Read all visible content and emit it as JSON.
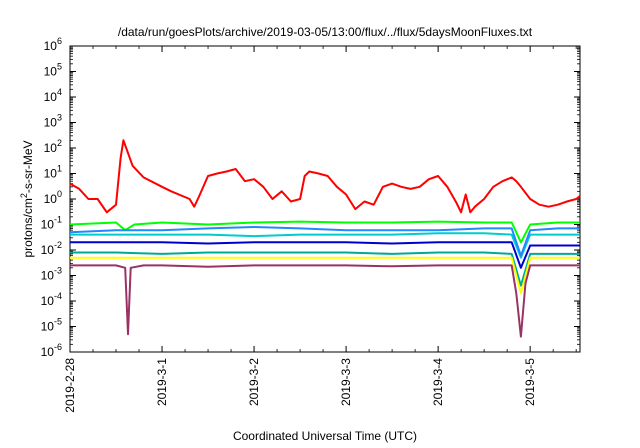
{
  "chart_data": {
    "type": "line",
    "title": "/data/run/goesPlots/archive/2019-03-05/13:00/flux/../flux/5daysMoonFluxes.txt",
    "xlabel": "Coordinated Universal Time (UTC)",
    "ylabel": {
      "base": "protons/cm",
      "sup": "2",
      "rest": "-s-sr-MeV"
    },
    "yscale": "log",
    "ylim": [
      1e-06,
      1000000.0
    ],
    "xlim": [
      "2019-02-28T00:00",
      "2019-03-05T13:00"
    ],
    "x_ticks": [
      "2019-2-28",
      "2019-3-1",
      "2019-3-2",
      "2019-3-3",
      "2019-3-4",
      "2019-3-5"
    ],
    "y_ticks": [
      {
        "base": "10",
        "exp": "6"
      },
      {
        "base": "10",
        "exp": "5"
      },
      {
        "base": "10",
        "exp": "4"
      },
      {
        "base": "10",
        "exp": "3"
      },
      {
        "base": "10",
        "exp": "2"
      },
      {
        "base": "10",
        "exp": "1"
      },
      {
        "base": "10",
        "exp": "0"
      },
      {
        "base": "10",
        "exp": "-1"
      },
      {
        "base": "10",
        "exp": "-2"
      },
      {
        "base": "10",
        "exp": "-3"
      },
      {
        "base": "10",
        "exp": "-4"
      },
      {
        "base": "10",
        "exp": "-5"
      },
      {
        "base": "10",
        "exp": "-6"
      }
    ],
    "grid": false,
    "legend": "none",
    "series": [
      {
        "color": "#ff0000",
        "points": [
          [
            0,
            4
          ],
          [
            0.1,
            2.5
          ],
          [
            0.2,
            1
          ],
          [
            0.3,
            1
          ],
          [
            0.4,
            0.3
          ],
          [
            0.5,
            0.6
          ],
          [
            0.55,
            40
          ],
          [
            0.58,
            200
          ],
          [
            0.62,
            80
          ],
          [
            0.68,
            20
          ],
          [
            0.8,
            7
          ],
          [
            1,
            3
          ],
          [
            1.1,
            2
          ],
          [
            1.3,
            1
          ],
          [
            1.35,
            0.5
          ],
          [
            1.4,
            1.2
          ],
          [
            1.5,
            8
          ],
          [
            1.6,
            10
          ],
          [
            1.7,
            12
          ],
          [
            1.8,
            15
          ],
          [
            1.9,
            5
          ],
          [
            2,
            6
          ],
          [
            2.1,
            3
          ],
          [
            2.2,
            1
          ],
          [
            2.3,
            2
          ],
          [
            2.4,
            0.8
          ],
          [
            2.5,
            1
          ],
          [
            2.55,
            8
          ],
          [
            2.6,
            12
          ],
          [
            2.7,
            10
          ],
          [
            2.8,
            8
          ],
          [
            2.9,
            3
          ],
          [
            3,
            1.5
          ],
          [
            3.1,
            0.4
          ],
          [
            3.2,
            0.8
          ],
          [
            3.3,
            0.6
          ],
          [
            3.4,
            3
          ],
          [
            3.5,
            4
          ],
          [
            3.6,
            3
          ],
          [
            3.7,
            2.5
          ],
          [
            3.8,
            3
          ],
          [
            3.9,
            6
          ],
          [
            4,
            8
          ],
          [
            4.1,
            3
          ],
          [
            4.2,
            0.7
          ],
          [
            4.25,
            0.3
          ],
          [
            4.3,
            1.5
          ],
          [
            4.35,
            0.3
          ],
          [
            4.4,
            0.5
          ],
          [
            4.5,
            1
          ],
          [
            4.6,
            3
          ],
          [
            4.7,
            5
          ],
          [
            4.8,
            7
          ],
          [
            4.85,
            5
          ],
          [
            4.9,
            3
          ],
          [
            5,
            1
          ],
          [
            5.1,
            0.6
          ],
          [
            5.2,
            0.5
          ],
          [
            5.3,
            0.6
          ],
          [
            5.4,
            0.8
          ],
          [
            5.5,
            1
          ],
          [
            5.54,
            1.3
          ]
        ]
      },
      {
        "color": "#00ff00",
        "points": [
          [
            0,
            0.1
          ],
          [
            0.5,
            0.12
          ],
          [
            0.6,
            0.06
          ],
          [
            0.7,
            0.1
          ],
          [
            1,
            0.12
          ],
          [
            1.5,
            0.1
          ],
          [
            2,
            0.12
          ],
          [
            2.5,
            0.13
          ],
          [
            3,
            0.12
          ],
          [
            3.5,
            0.12
          ],
          [
            4,
            0.13
          ],
          [
            4.5,
            0.12
          ],
          [
            4.8,
            0.12
          ],
          [
            4.9,
            0.02
          ],
          [
            5,
            0.1
          ],
          [
            5.3,
            0.12
          ],
          [
            5.54,
            0.12
          ]
        ]
      },
      {
        "color": "#00cccc",
        "points": [
          [
            0,
            0.04
          ],
          [
            0.5,
            0.04
          ],
          [
            1,
            0.04
          ],
          [
            1.5,
            0.04
          ],
          [
            2,
            0.035
          ],
          [
            2.5,
            0.04
          ],
          [
            3,
            0.04
          ],
          [
            3.5,
            0.04
          ],
          [
            4,
            0.045
          ],
          [
            4.5,
            0.045
          ],
          [
            4.8,
            0.04
          ],
          [
            4.9,
            0.005
          ],
          [
            5,
            0.04
          ],
          [
            5.3,
            0.04
          ],
          [
            5.54,
            0.04
          ]
        ]
      },
      {
        "color": "#2288ff",
        "points": [
          [
            0,
            0.05
          ],
          [
            0.5,
            0.06
          ],
          [
            1,
            0.06
          ],
          [
            1.5,
            0.07
          ],
          [
            2,
            0.08
          ],
          [
            2.5,
            0.07
          ],
          [
            3,
            0.06
          ],
          [
            3.5,
            0.06
          ],
          [
            4,
            0.06
          ],
          [
            4.5,
            0.07
          ],
          [
            4.8,
            0.07
          ],
          [
            4.9,
            0.006
          ],
          [
            5,
            0.06
          ],
          [
            5.3,
            0.07
          ],
          [
            5.54,
            0.07
          ]
        ]
      },
      {
        "color": "#0000cc",
        "points": [
          [
            0,
            0.02
          ],
          [
            0.5,
            0.02
          ],
          [
            1,
            0.02
          ],
          [
            1.5,
            0.018
          ],
          [
            2,
            0.02
          ],
          [
            2.5,
            0.02
          ],
          [
            3,
            0.02
          ],
          [
            3.5,
            0.018
          ],
          [
            4,
            0.02
          ],
          [
            4.5,
            0.02
          ],
          [
            4.8,
            0.02
          ],
          [
            4.9,
            0.002
          ],
          [
            5,
            0.015
          ],
          [
            5.3,
            0.015
          ],
          [
            5.54,
            0.015
          ]
        ]
      },
      {
        "color": "#00aa99",
        "points": [
          [
            0,
            0.008
          ],
          [
            0.5,
            0.008
          ],
          [
            1,
            0.007
          ],
          [
            1.5,
            0.008
          ],
          [
            2,
            0.008
          ],
          [
            2.5,
            0.008
          ],
          [
            3,
            0.008
          ],
          [
            3.5,
            0.007
          ],
          [
            4,
            0.008
          ],
          [
            4.5,
            0.008
          ],
          [
            4.8,
            0.007
          ],
          [
            4.9,
            0.0004
          ],
          [
            5,
            0.007
          ],
          [
            5.3,
            0.007
          ],
          [
            5.54,
            0.007
          ]
        ]
      },
      {
        "color": "#ffff00",
        "points": [
          [
            0,
            0.005
          ],
          [
            0.5,
            0.005
          ],
          [
            1,
            0.005
          ],
          [
            1.5,
            0.005
          ],
          [
            2,
            0.005
          ],
          [
            2.5,
            0.005
          ],
          [
            3,
            0.005
          ],
          [
            3.5,
            0.005
          ],
          [
            4,
            0.005
          ],
          [
            4.5,
            0.005
          ],
          [
            4.8,
            0.005
          ],
          [
            4.9,
            0.0002
          ],
          [
            5,
            0.005
          ],
          [
            5.3,
            0.005
          ],
          [
            5.54,
            0.005
          ]
        ]
      },
      {
        "color": "#993366",
        "points": [
          [
            0,
            0.0025
          ],
          [
            0.3,
            0.0025
          ],
          [
            0.5,
            0.0025
          ],
          [
            0.6,
            0.002
          ],
          [
            0.63,
            5e-06
          ],
          [
            0.66,
            0.002
          ],
          [
            0.8,
            0.0025
          ],
          [
            1,
            0.0025
          ],
          [
            1.5,
            0.0022
          ],
          [
            2,
            0.0025
          ],
          [
            2.5,
            0.0025
          ],
          [
            3,
            0.0025
          ],
          [
            3.5,
            0.0023
          ],
          [
            4,
            0.0025
          ],
          [
            4.5,
            0.0025
          ],
          [
            4.8,
            0.0025
          ],
          [
            4.85,
            0.0002
          ],
          [
            4.9,
            4e-06
          ],
          [
            4.95,
            0.0005
          ],
          [
            5,
            0.0025
          ],
          [
            5.3,
            0.0025
          ],
          [
            5.54,
            0.0025
          ]
        ]
      }
    ]
  }
}
